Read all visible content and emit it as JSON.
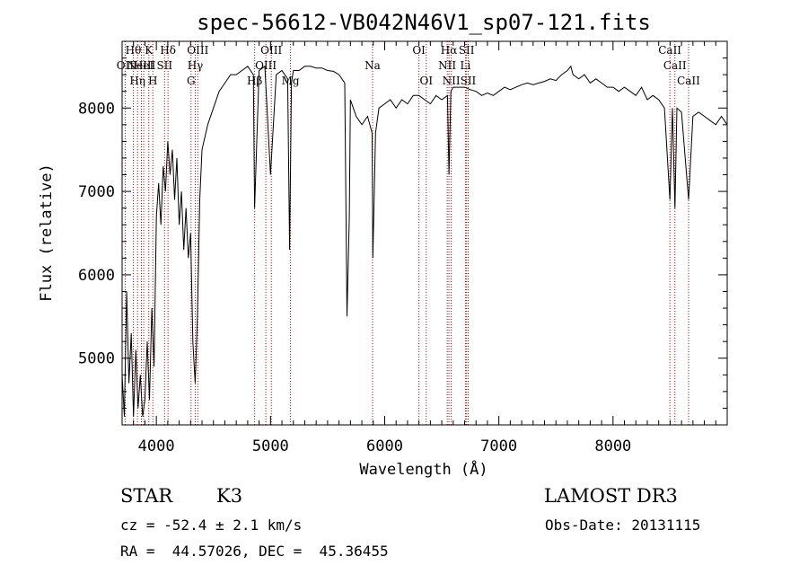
{
  "chart_data": {
    "type": "line",
    "title": "spec-56612-VB042N46V1_sp07-121.fits",
    "xlabel": "Wavelength (Å)",
    "ylabel": "Flux (relative)",
    "xlim": [
      3700,
      9000
    ],
    "ylim": [
      4200,
      8800
    ],
    "x_ticks": [
      4000,
      5000,
      6000,
      7000,
      8000
    ],
    "y_ticks": [
      5000,
      6000,
      7000,
      8000
    ],
    "series": [
      {
        "x": [
          3700,
          3720,
          3740,
          3760,
          3780,
          3800,
          3820,
          3840,
          3860,
          3880,
          3900,
          3920,
          3940,
          3960,
          3980,
          4000,
          4020,
          4040,
          4060,
          4080,
          4100,
          4120,
          4140,
          4160,
          4180,
          4200,
          4220,
          4240,
          4260,
          4280,
          4300,
          4320,
          4340,
          4360,
          4380,
          4400,
          4450,
          4500,
          4550,
          4600,
          4650,
          4700,
          4750,
          4800,
          4850,
          4861,
          4900,
          4950,
          5000,
          5050,
          5100,
          5150,
          5167,
          5183,
          5200,
          5250,
          5300,
          5350,
          5400,
          5450,
          5500,
          5550,
          5600,
          5650,
          5670,
          5690,
          5700,
          5750,
          5800,
          5850,
          5890,
          5896,
          5920,
          5950,
          6000,
          6050,
          6100,
          6150,
          6200,
          6250,
          6300,
          6350,
          6400,
          6450,
          6500,
          6550,
          6563,
          6580,
          6600,
          6650,
          6700,
          6750,
          6800,
          6850,
          6900,
          6950,
          7000,
          7050,
          7100,
          7150,
          7200,
          7250,
          7300,
          7350,
          7400,
          7450,
          7500,
          7550,
          7600,
          7630,
          7650,
          7700,
          7750,
          7800,
          7850,
          7900,
          7950,
          8000,
          8050,
          8100,
          8150,
          8200,
          8250,
          8300,
          8350,
          8400,
          8450,
          8498,
          8520,
          8542,
          8560,
          8600,
          8662,
          8700,
          8750,
          8800,
          8850,
          8900,
          8950,
          9000
        ],
        "y": [
          4800,
          4300,
          5800,
          4700,
          5300,
          4300,
          5100,
          4400,
          4800,
          4300,
          4500,
          5200,
          4500,
          5600,
          4900,
          6700,
          7100,
          6600,
          7300,
          7000,
          7600,
          7200,
          7500,
          6900,
          7400,
          6600,
          7000,
          6300,
          6800,
          6200,
          6500,
          5200,
          4700,
          5500,
          6900,
          7500,
          7800,
          8000,
          8200,
          8300,
          8400,
          8400,
          8450,
          8500,
          8400,
          6800,
          8450,
          8500,
          7200,
          8400,
          8450,
          8350,
          6300,
          8300,
          8450,
          8450,
          8500,
          8500,
          8480,
          8480,
          8450,
          8440,
          8400,
          8300,
          5500,
          6700,
          8100,
          7900,
          7800,
          7900,
          7700,
          6200,
          7700,
          8000,
          8050,
          8100,
          8000,
          8100,
          8050,
          8150,
          8150,
          8100,
          8050,
          8150,
          8100,
          8150,
          7200,
          8200,
          8250,
          8250,
          8250,
          8220,
          8200,
          8150,
          8180,
          8150,
          8200,
          8250,
          8220,
          8250,
          8280,
          8300,
          8280,
          8300,
          8320,
          8350,
          8330,
          8400,
          8450,
          8500,
          8400,
          8350,
          8400,
          8300,
          8350,
          8300,
          8250,
          8250,
          8200,
          8250,
          8200,
          8150,
          8250,
          8100,
          8150,
          8100,
          8000,
          6900,
          8000,
          6800,
          8000,
          7950,
          6900,
          7900,
          7950,
          7900,
          7850,
          7800,
          7900,
          7800
        ]
      }
    ],
    "line_markers": [
      {
        "wl": 3798,
        "label": "Hθ",
        "row": 1
      },
      {
        "wl": 3835,
        "label": "Hη",
        "row": 3
      },
      {
        "wl": 3727,
        "label": "OII",
        "row": 2
      },
      {
        "wl": 3869,
        "label": "NeIII",
        "row": 2
      },
      {
        "wl": 3889,
        "label": "HeI",
        "row": 2
      },
      {
        "wl": 3934,
        "label": "K",
        "row": 1
      },
      {
        "wl": 3969,
        "label": "H",
        "row": 3
      },
      {
        "wl": 4072,
        "label": "SII",
        "row": 2
      },
      {
        "wl": 4102,
        "label": "Hδ",
        "row": 1
      },
      {
        "wl": 4304,
        "label": "G",
        "row": 3
      },
      {
        "wl": 4341,
        "label": "Hγ",
        "row": 2
      },
      {
        "wl": 4363,
        "label": "OIII",
        "row": 1
      },
      {
        "wl": 4861,
        "label": "Hβ",
        "row": 3
      },
      {
        "wl": 4959,
        "label": "OIII",
        "row": 2
      },
      {
        "wl": 5007,
        "label": "OIII",
        "row": 1
      },
      {
        "wl": 5175,
        "label": "Mg",
        "row": 3
      },
      {
        "wl": 5894,
        "label": "Na",
        "row": 2
      },
      {
        "wl": 6300,
        "label": "OI",
        "row": 1
      },
      {
        "wl": 6364,
        "label": "OI",
        "row": 3
      },
      {
        "wl": 6548,
        "label": "NII",
        "row": 2
      },
      {
        "wl": 6563,
        "label": "Hα",
        "row": 1
      },
      {
        "wl": 6583,
        "label": "NII",
        "row": 3
      },
      {
        "wl": 6707,
        "label": "Li",
        "row": 2
      },
      {
        "wl": 6717,
        "label": "SII",
        "row": 1
      },
      {
        "wl": 6731,
        "label": "SII",
        "row": 3
      },
      {
        "wl": 8498,
        "label": "CaII",
        "row": 1
      },
      {
        "wl": 8542,
        "label": "CaII",
        "row": 2
      },
      {
        "wl": 8662,
        "label": "CaII",
        "row": 3
      }
    ]
  },
  "info": {
    "class": "STAR",
    "subclass": "K3",
    "survey": "LAMOST DR3",
    "cz": "cz = -52.4 ± 2.1 km/s",
    "obs_date": "Obs-Date: 20131115",
    "radec": "RA =  44.57026, DEC =  45.36455"
  }
}
